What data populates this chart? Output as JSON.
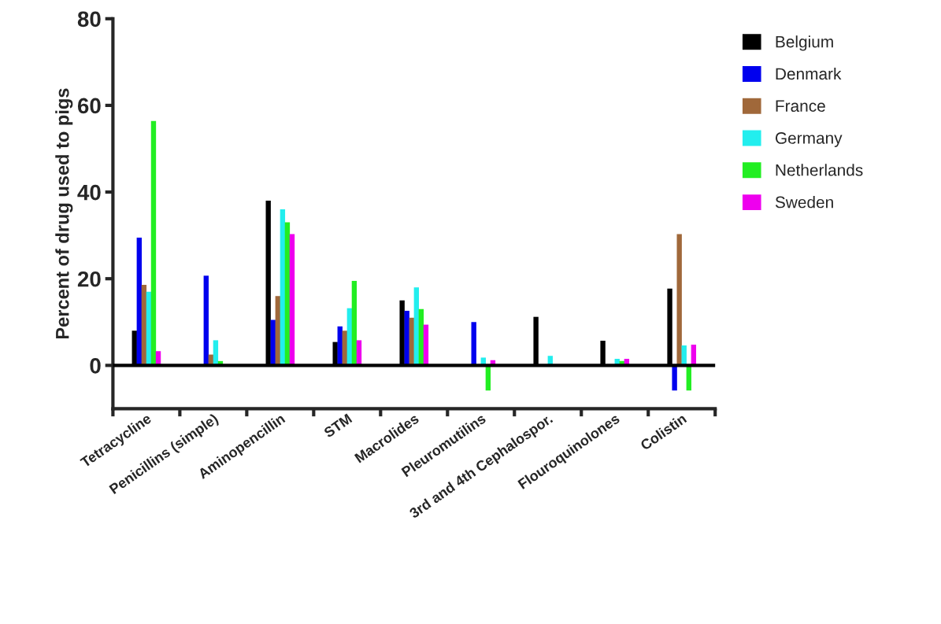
{
  "chart_data": {
    "type": "bar",
    "ylabel": "Percent of drug used to pigs",
    "categories": [
      "Tetracycline",
      "Penicillins (simple)",
      "Aminopencillin",
      "STM",
      "Macrolides",
      "Pleuromutilins",
      "3rd and 4th Cephalospor.",
      "Flouroquinolones",
      "Colistin"
    ],
    "series": [
      {
        "name": "Belgium",
        "color": "#000000",
        "values": [
          8,
          null,
          38,
          5.4,
          15,
          0,
          11.2,
          5.7,
          17.7
        ]
      },
      {
        "name": "Denmark",
        "color": "#0000ee",
        "values": [
          29.5,
          20.7,
          10.5,
          9,
          12.6,
          10,
          0,
          0,
          -5.8
        ]
      },
      {
        "name": "France",
        "color": "#a0683a",
        "values": [
          18.6,
          2.5,
          16,
          8,
          11,
          0,
          null,
          0,
          30.3
        ]
      },
      {
        "name": "Germany",
        "color": "#22eeee",
        "values": [
          17,
          5.8,
          36,
          13.2,
          18,
          1.8,
          2.2,
          1.5,
          4.6
        ]
      },
      {
        "name": "Netherlands",
        "color": "#22ee22",
        "values": [
          56.4,
          1,
          33,
          19.5,
          13,
          -5.8,
          0,
          1,
          -5.8
        ]
      },
      {
        "name": "Sweden",
        "color": "#ee00ee",
        "values": [
          3.3,
          0,
          30.3,
          5.8,
          9.4,
          1.2,
          0,
          1.5,
          4.8
        ]
      }
    ],
    "ylim": [
      -10,
      80
    ],
    "yticks": [
      0,
      20,
      40,
      60,
      80
    ],
    "ref_lines": [
      {
        "axis": "y",
        "value": 0,
        "color": "#000000"
      }
    ],
    "legend": "top right",
    "grid": false
  }
}
